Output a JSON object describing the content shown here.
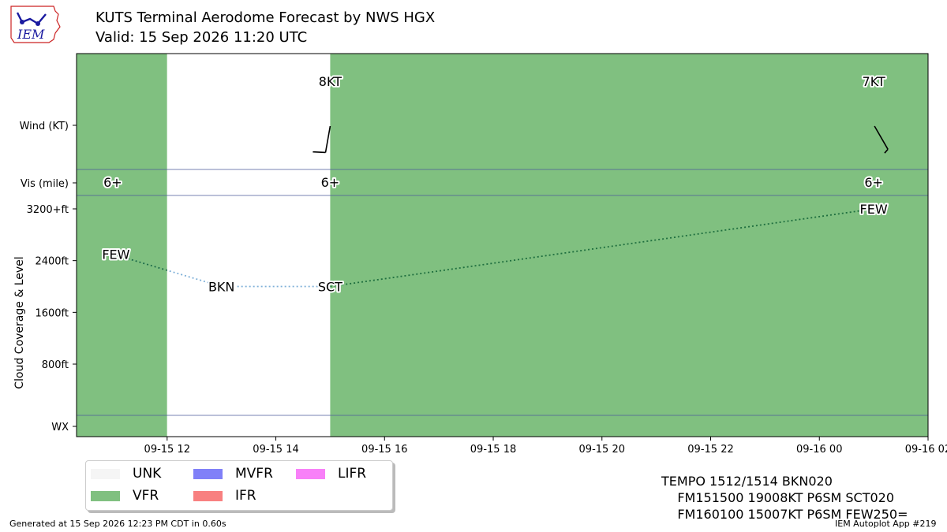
{
  "header": {
    "title": "KUTS Terminal Aerodome Forecast by NWS HGX",
    "valid": "Valid: 15 Sep 2026 11:20 UTC",
    "logo_text": "IEM"
  },
  "chart_data": {
    "type": "timeline",
    "xlim": [
      "2026-09-15 10:20",
      "2026-09-16 02:00"
    ],
    "x_tick_labels": [
      "09-15 12",
      "09-15 14",
      "09-15 16",
      "09-15 18",
      "09-15 20",
      "09-15 22",
      "09-16 00",
      "09-16 02"
    ],
    "x_ticks": [
      "2026-09-15 12:00",
      "2026-09-15 14:00",
      "2026-09-15 16:00",
      "2026-09-15 18:00",
      "2026-09-15 20:00",
      "2026-09-15 22:00",
      "2026-09-16 00:00",
      "2026-09-16 02:00"
    ],
    "y_tick_labels": [
      "Wind (KT)",
      "Vis (mile)",
      "3200+ft",
      "2400ft",
      "1600ft",
      "800ft",
      "WX"
    ],
    "ylabel": "Cloud Coverage & Level",
    "flight_category_bands": [
      {
        "start": "2026-09-15 10:20",
        "end": "2026-09-15 12:00",
        "category": "VFR"
      },
      {
        "start": "2026-09-15 12:00",
        "end": "2026-09-15 15:00",
        "category": "UNK"
      },
      {
        "start": "2026-09-15 15:00",
        "end": "2026-09-16 02:00",
        "category": "VFR"
      }
    ],
    "wind": [
      {
        "time": "2026-09-15 15:00",
        "label": "8KT",
        "speed_kt": 8,
        "direction_deg": 190
      },
      {
        "time": "2026-09-16 01:00",
        "label": "7KT",
        "speed_kt": 7,
        "direction_deg": 150
      }
    ],
    "visibility": [
      {
        "time": "2026-09-15 11:00",
        "label": "6+"
      },
      {
        "time": "2026-09-15 15:00",
        "label": "6+"
      },
      {
        "time": "2026-09-16 01:00",
        "label": "6+"
      }
    ],
    "clouds": [
      {
        "time": "2026-09-15 11:00",
        "coverage": "FEW",
        "level_ft": 2500,
        "capped": true
      },
      {
        "time": "2026-09-15 13:00",
        "coverage": "BKN",
        "level_ft": 2000
      },
      {
        "time": "2026-09-15 15:00",
        "coverage": "SCT",
        "level_ft": 2000
      },
      {
        "time": "2026-09-16 01:00",
        "coverage": "FEW",
        "level_ft": 25000,
        "capped": true
      }
    ]
  },
  "legend": {
    "items": [
      {
        "label": "UNK",
        "color": "#f5f5f5"
      },
      {
        "label": "VFR",
        "color": "#80c080"
      },
      {
        "label": "MVFR",
        "color": "#8080f8"
      },
      {
        "label": "IFR",
        "color": "#f88080"
      },
      {
        "label": "LIFR",
        "color": "#f880f8"
      }
    ]
  },
  "taf": {
    "lines": [
      "TEMPO 1512/1514 BKN020",
      "    FM151500 19008KT P6SM SCT020",
      "    FM160100 15007KT P6SM FEW250="
    ]
  },
  "footer": {
    "generated": "Generated at 15 Sep 2026 12:23 PM CDT in 0.60s",
    "app": "IEM Autoplot App #219"
  }
}
